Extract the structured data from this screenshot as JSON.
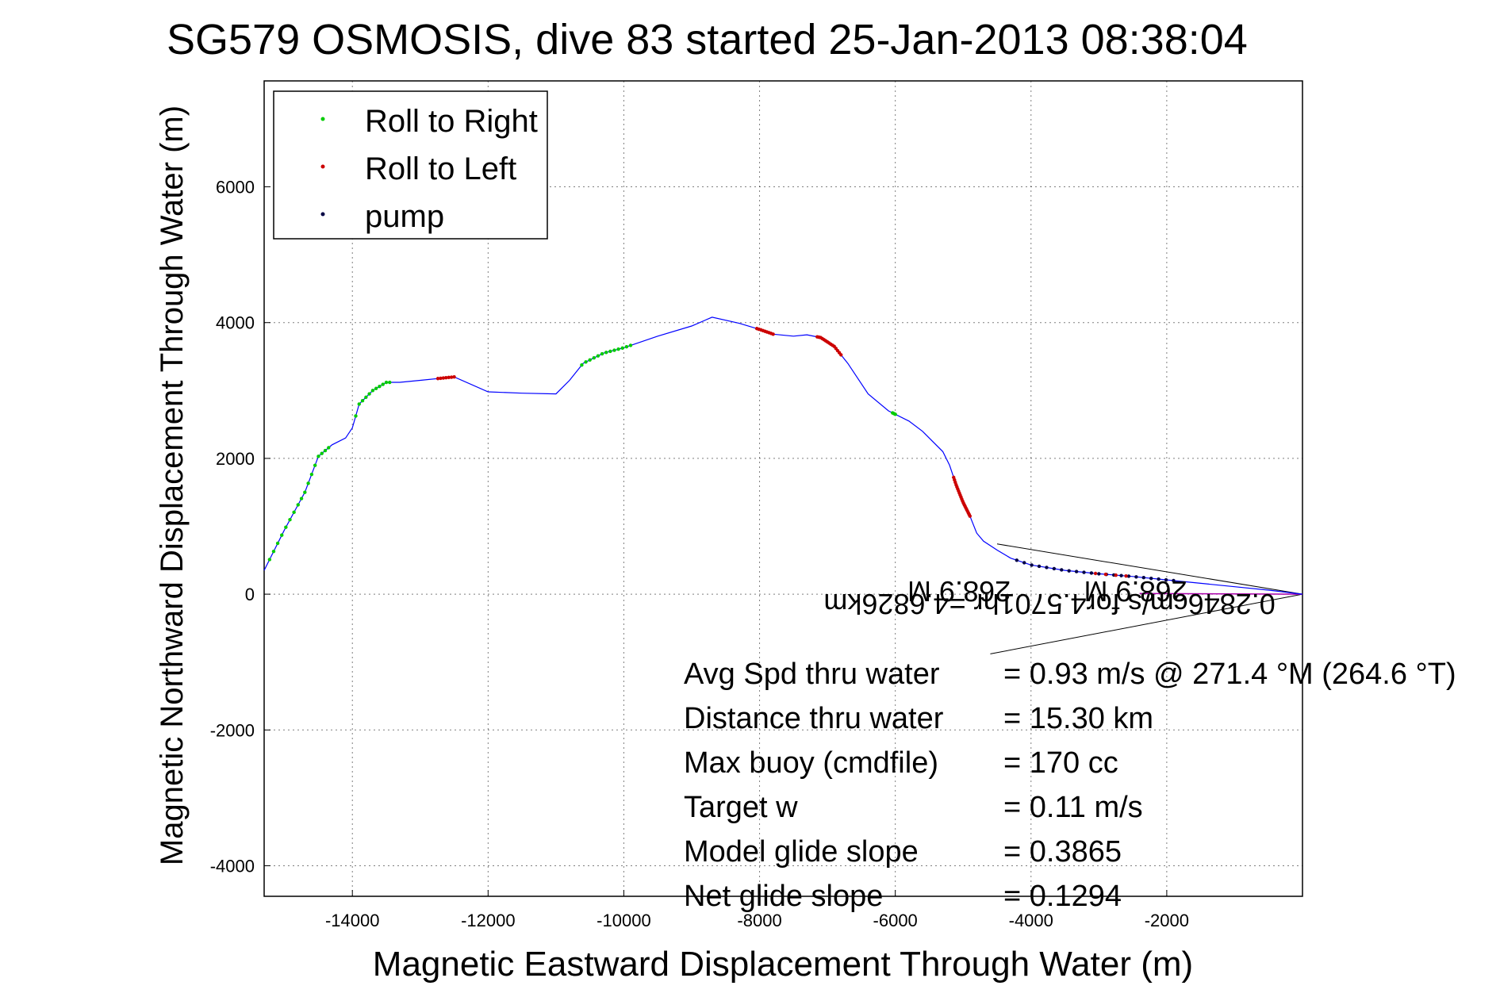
{
  "chart_data": {
    "type": "line",
    "title": "SG579 OSMOSIS, dive 83 started 25-Jan-2013 08:38:04",
    "xlabel": "Magnetic Eastward Displacement Through Water (m)",
    "ylabel": "Magnetic Northward Displacement Through Water (m)",
    "xlim": [
      -15300,
      0
    ],
    "ylim": [
      -4450,
      7560
    ],
    "xticks": [
      -14000,
      -12000,
      -10000,
      -8000,
      -6000,
      -4000,
      -2000
    ],
    "yticks": [
      -4000,
      -2000,
      0,
      2000,
      4000,
      6000
    ],
    "grid": true,
    "legend_position": "top-left",
    "colors": {
      "track": "#0000ff",
      "roll_right": "#00cc00",
      "roll_left": "#cc0000",
      "pump": "#000044",
      "fan": "#000000",
      "current": "#aa00aa"
    },
    "legend": [
      {
        "label": "Roll to Right",
        "color": "#00cc00"
      },
      {
        "label": "Roll to Left",
        "color": "#cc0000"
      },
      {
        "label": "pump",
        "color": "#000044"
      }
    ],
    "series": [
      {
        "name": "track",
        "x": [
          0,
          -500,
          -1000,
          -1500,
          -2000,
          -2500,
          -3000,
          -3500,
          -4000,
          -4300,
          -4500,
          -4700,
          -4800,
          -4900,
          -5000,
          -5100,
          -5150,
          -5200,
          -5300,
          -5600,
          -5800,
          -6100,
          -6400,
          -6700,
          -6900,
          -7100,
          -7300,
          -7500,
          -7800,
          -8000,
          -8300,
          -8700,
          -9000,
          -9500,
          -10000,
          -10300,
          -10600,
          -10800,
          -11000,
          -11500,
          -12000,
          -12500,
          -13000,
          -13300,
          -13500,
          -13700,
          -13900,
          -14000,
          -14100,
          -14300,
          -14500,
          -14700,
          -15000,
          -15300
        ],
        "y": [
          0,
          60,
          110,
          160,
          210,
          260,
          300,
          350,
          430,
          530,
          650,
          780,
          900,
          1150,
          1350,
          1600,
          1750,
          1900,
          2100,
          2400,
          2550,
          2700,
          2950,
          3400,
          3650,
          3780,
          3820,
          3800,
          3830,
          3900,
          3990,
          4080,
          3950,
          3800,
          3630,
          3550,
          3400,
          3150,
          2950,
          2960,
          2980,
          3200,
          3150,
          3120,
          3120,
          3000,
          2800,
          2450,
          2300,
          2200,
          2030,
          1500,
          950,
          350
        ]
      }
    ],
    "fan_apex": {
      "x": 0,
      "y": 0
    },
    "fan_ends": [
      {
        "x": -4500,
        "y": 740
      },
      {
        "x": -4600,
        "y": -880
      }
    ],
    "current_annotations": [
      {
        "text": "268.9 M",
        "x": -1700,
        "y": 190
      },
      {
        "text": "0.2846cm/s for4.5701hr =4.6826km",
        "x": -400,
        "y": 0
      },
      {
        "text": "268.9 M",
        "x": -4300,
        "y": 190
      }
    ],
    "stats": [
      {
        "label": "Avg Spd thru water",
        "value": "=  0.93 m/s @ 271.4  °M (264.6 °T)"
      },
      {
        "label": "Distance thru water",
        "value": "= 15.30 km"
      },
      {
        "label": "Max buoy (cmdfile)",
        "value": "= 170 cc"
      },
      {
        "label": "Target w",
        "value": "= 0.11 m/s"
      },
      {
        "label": "Model glide slope",
        "value": "= 0.3865"
      },
      {
        "label": "Net glide slope",
        "value": "= 0.1294"
      }
    ]
  }
}
